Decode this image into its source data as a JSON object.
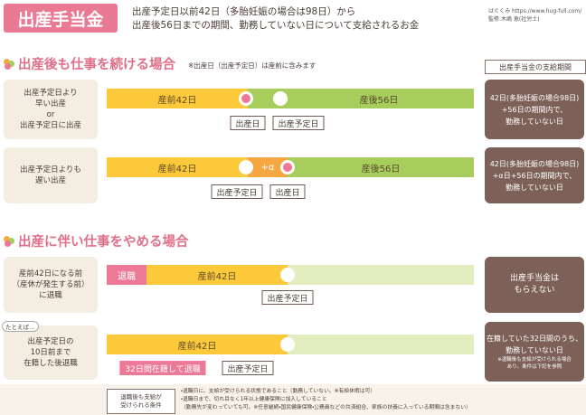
{
  "header": {
    "title": "出産手当金",
    "description": [
      "出産予定日以前42日（多胎妊娠の場合は98日）から",
      "出産後56日までの期間、勤務していない日について支給されるお金"
    ],
    "source": [
      "はぐくみ https://www.hug-full.com/",
      "監修:木嶋 恵(社労士)"
    ]
  },
  "section1": {
    "title": "出産後も仕事を続ける場合",
    "note": "※出産日（出産予定日）は産前に含みます",
    "column_header": "出産手当金の支給期間",
    "rows": [
      {
        "label": [
          "出産予定日より",
          "早い出産",
          "or",
          "出産予定日に出産"
        ],
        "segments": [
          "産前42日",
          "産後56日"
        ],
        "markers": [
          "出産日",
          "出産予定日"
        ],
        "result": [
          "42日(多胎妊娠の場合98日)",
          "+56日の期間内で、",
          "勤務していない日"
        ]
      },
      {
        "label": [
          "出産予定日よりも",
          "遅い出産"
        ],
        "segments": [
          "産前42日",
          "+α",
          "産後56日"
        ],
        "markers": [
          "出産予定日",
          "出産日"
        ],
        "result": [
          "42日(多胎妊娠の場合98日)",
          "+α日+56日の期間内で、",
          "勤務していない日"
        ]
      }
    ]
  },
  "section2": {
    "title": "出産に伴い仕事をやめる場合",
    "rows": [
      {
        "label": [
          "産前42日になる前",
          "（産休が発生する前）",
          "に退職"
        ],
        "segments": [
          "退職",
          "産前42日"
        ],
        "markers": [
          "出産予定日"
        ],
        "result": [
          "出産手当金は",
          "もらえない"
        ]
      },
      {
        "callout": "たとえば…",
        "label": [
          "出産予定日の",
          "10日前まで",
          "在籍した後退職"
        ],
        "segments": [
          "産前42日"
        ],
        "tag": "32日間在籍して退職",
        "markers": [
          "出産予定日"
        ],
        "result": [
          "在籍していた32日間のうち、",
          "勤務していない日"
        ],
        "result_note": [
          "※退職後も支給が受けられる場合",
          "あり。条件は下記を参照"
        ]
      }
    ]
  },
  "footer": {
    "box": [
      "退職後も支給が",
      "受けられる条件"
    ],
    "conditions": [
      "・退職日に、支給が受けられる状態であること（勤務していない。※有給休暇は可）",
      "・退職日まで、切れ目なく1年以上健康保険に加入していること",
      "（勤務先が変わっていても可。※任意継続・国民健康保険・公務員などの共済組合、家族の扶養に入っている期間は含まない）"
    ]
  }
}
